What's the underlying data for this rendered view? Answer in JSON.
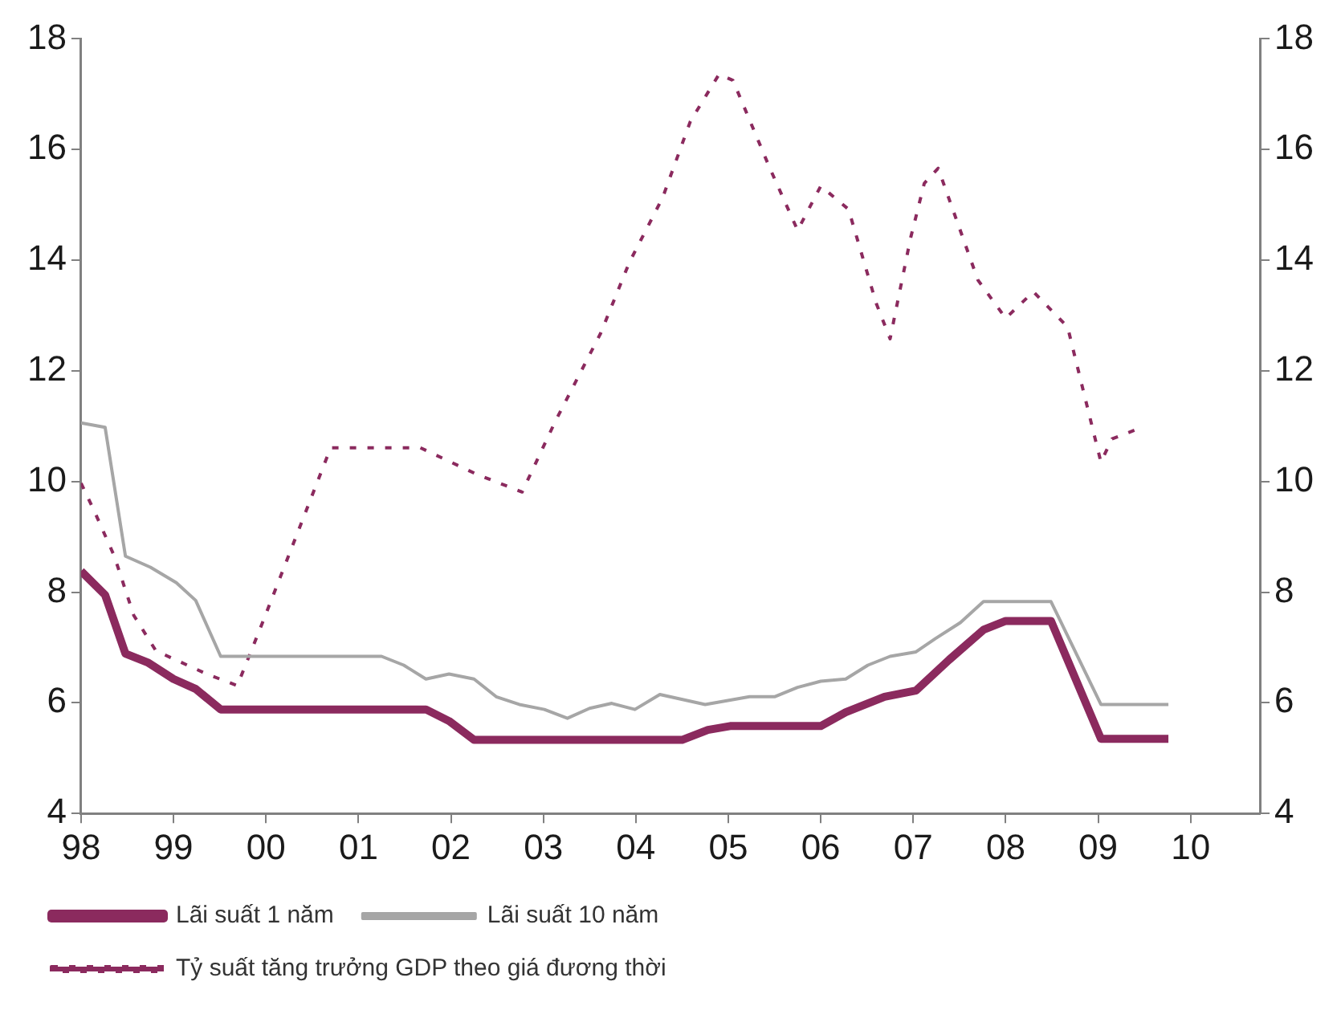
{
  "chart_data": {
    "type": "line",
    "grid": false,
    "legend": "bottom",
    "xlim": [
      1998,
      2010.75
    ],
    "xticks": [
      {
        "value": 1998,
        "label": "98"
      },
      {
        "value": 1999,
        "label": "99"
      },
      {
        "value": 2000,
        "label": "00"
      },
      {
        "value": 2001,
        "label": "01"
      },
      {
        "value": 2002,
        "label": "02"
      },
      {
        "value": 2003,
        "label": "03"
      },
      {
        "value": 2004,
        "label": "04"
      },
      {
        "value": 2005,
        "label": "05"
      },
      {
        "value": 2006,
        "label": "06"
      },
      {
        "value": 2007,
        "label": "07"
      },
      {
        "value": 2008,
        "label": "08"
      },
      {
        "value": 2009,
        "label": "09"
      },
      {
        "value": 2010,
        "label": "10"
      }
    ],
    "ylim": [
      4,
      18
    ],
    "yticks": [
      4,
      6,
      8,
      10,
      12,
      14,
      16,
      18
    ],
    "y2lim": [
      4,
      18
    ],
    "y2ticks": [
      4,
      6,
      8,
      10,
      12,
      14,
      16,
      18
    ],
    "series": [
      {
        "name": "Lãi suất 1 năm",
        "color": "#8b2a5e",
        "line_style": "solid",
        "x": [
          1998.0,
          1998.26,
          1998.48,
          1998.72,
          1999.0,
          1999.24,
          1999.51,
          2001.73,
          2001.98,
          2002.25,
          2004.5,
          2004.78,
          2005.02,
          2006.0,
          2006.27,
          2006.69,
          2007.03,
          2007.39,
          2007.76,
          2008.0,
          2008.49,
          2009.03,
          2009.76
        ],
        "values": [
          8.38,
          7.95,
          6.89,
          6.73,
          6.43,
          6.25,
          5.88,
          5.88,
          5.67,
          5.33,
          5.33,
          5.51,
          5.58,
          5.58,
          5.83,
          6.11,
          6.22,
          6.78,
          7.32,
          7.48,
          7.48,
          5.35,
          5.35
        ]
      },
      {
        "name": "Lãi suất 10 năm",
        "color": "#a6a6a6",
        "line_style": "solid",
        "x": [
          1998.0,
          1998.26,
          1998.48,
          1998.75,
          1999.03,
          1999.24,
          1999.51,
          2001.25,
          2001.49,
          2001.73,
          2001.98,
          2002.25,
          2002.49,
          2002.74,
          2003.01,
          2003.26,
          2003.5,
          2003.74,
          2003.99,
          2004.26,
          2004.75,
          2005.23,
          2005.5,
          2005.75,
          2006.0,
          2006.27,
          2006.51,
          2006.75,
          2007.03,
          2007.24,
          2007.51,
          2007.76,
          2008.49,
          2009.03,
          2009.76
        ],
        "values": [
          11.06,
          10.98,
          8.65,
          8.45,
          8.17,
          7.85,
          6.84,
          6.84,
          6.68,
          6.43,
          6.52,
          6.43,
          6.11,
          5.97,
          5.88,
          5.72,
          5.9,
          5.99,
          5.88,
          6.15,
          5.97,
          6.11,
          6.11,
          6.28,
          6.39,
          6.43,
          6.68,
          6.84,
          6.92,
          7.16,
          7.45,
          7.83,
          7.83,
          5.97,
          5.97
        ]
      },
      {
        "name": "Tỷ suất tăng trưởng GDP theo giá đương thời",
        "color": "#8b2a5e",
        "line_style": "dotted",
        "x": [
          1998.0,
          1998.15,
          1998.36,
          1998.57,
          1998.81,
          1999.36,
          1999.69,
          1999.97,
          2000.39,
          2000.7,
          2001.67,
          2002.28,
          2002.77,
          2003.13,
          2003.62,
          2003.93,
          2004.29,
          2004.59,
          2004.9,
          2005.05,
          2005.45,
          2005.75,
          2006.0,
          2006.3,
          2006.6,
          2006.75,
          2006.97,
          2007.12,
          2007.27,
          2007.7,
          2008.0,
          2008.3,
          2008.67,
          2009.03,
          2009.15,
          2009.4
        ],
        "values": [
          9.97,
          9.44,
          8.65,
          7.58,
          6.94,
          6.52,
          6.31,
          7.48,
          9.28,
          10.61,
          10.61,
          10.13,
          9.81,
          11.09,
          12.68,
          13.96,
          15.13,
          16.51,
          17.36,
          17.25,
          15.66,
          14.54,
          15.34,
          14.92,
          13.22,
          12.58,
          14.39,
          15.39,
          15.66,
          13.64,
          12.95,
          13.43,
          12.79,
          10.35,
          10.77,
          10.93
        ]
      }
    ]
  }
}
